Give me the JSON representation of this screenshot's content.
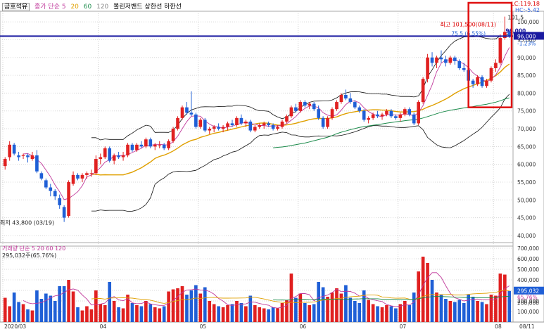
{
  "header": {
    "stock_name": "금호석유",
    "legend_items": [
      {
        "label": "종가 단순 5",
        "color": "#c0399b"
      },
      {
        "label": "20",
        "color": "#e0a000"
      },
      {
        "label": "60",
        "color": "#1a8a4a"
      },
      {
        "label": "120",
        "color": "#888888"
      },
      {
        "label": "볼린저밴드 상한선 하한선",
        "color": "#000000"
      }
    ],
    "lc": "LC:119.18",
    "hc": "HC:-5.42"
  },
  "price_panel": {
    "y_ticks": [
      "100,000",
      "95,000",
      "90,000",
      "85,000",
      "80,000",
      "75,000",
      "70,000",
      "65,000",
      "60,000",
      "55,000",
      "50,000",
      "45,000",
      "40,000"
    ],
    "y_tick_values": [
      100000,
      95000,
      90000,
      85000,
      80000,
      75000,
      70000,
      65000,
      60000,
      55000,
      50000,
      45000,
      40000
    ],
    "current_price_label": "96,000",
    "current_price": 96000,
    "change_label": "-1.23%",
    "max_annotation": "최고 101,500(08/11)",
    "max_top_label": "101,5",
    "min_annotation": "최저 43,800 (03/19)",
    "prev_close_annotation": "75,5 (6.55%)",
    "box_small_label": "96,000"
  },
  "volume_panel": {
    "legend_label": "거래량 단순 5 20 60 120",
    "volume_value": "295,032주(65.76%)",
    "y_ticks": [
      "700,000",
      "600,000",
      "500,000",
      "400,000",
      "300,000",
      "200,000",
      "100,000"
    ],
    "y_tick_values": [
      700000,
      600000,
      500000,
      400000,
      300000,
      200000,
      100000
    ],
    "current_volume_label": "295,032",
    "pct_label": "65.76%",
    "ref_label": "200,000"
  },
  "x_axis": {
    "labels": [
      "2020/03",
      "04",
      "05",
      "06",
      "07",
      "08",
      "08/11"
    ]
  },
  "chart_data": {
    "type": "candlestick",
    "title": "금호석유",
    "y_range": [
      38000,
      103000
    ],
    "volume_range": [
      0,
      720000
    ],
    "months": [
      "2020/03",
      "04",
      "05",
      "06",
      "07",
      "08"
    ],
    "candles": [
      {
        "o": 59500,
        "h": 62000,
        "l": 58500,
        "c": 61500,
        "v": 230000
      },
      {
        "o": 62000,
        "h": 66500,
        "l": 61000,
        "c": 65500,
        "v": 150000
      },
      {
        "o": 65500,
        "h": 66000,
        "l": 62500,
        "c": 63000,
        "v": 280000
      },
      {
        "o": 62500,
        "h": 63500,
        "l": 61000,
        "c": 62000,
        "v": 190000
      },
      {
        "o": 62500,
        "h": 63000,
        "l": 61500,
        "c": 62500,
        "v": 170000
      },
      {
        "o": 62500,
        "h": 63000,
        "l": 60500,
        "c": 62000,
        "v": 120000
      },
      {
        "o": 61500,
        "h": 63500,
        "l": 61000,
        "c": 62500,
        "v": 110000
      },
      {
        "o": 62500,
        "h": 64000,
        "l": 57500,
        "c": 58000,
        "v": 300000
      },
      {
        "o": 57500,
        "h": 58000,
        "l": 55500,
        "c": 56000,
        "v": 220000
      },
      {
        "o": 55500,
        "h": 56000,
        "l": 53000,
        "c": 53500,
        "v": 270000
      },
      {
        "o": 53500,
        "h": 54500,
        "l": 51000,
        "c": 52500,
        "v": 250000
      },
      {
        "o": 52500,
        "h": 53000,
        "l": 50000,
        "c": 51000,
        "v": 200000
      },
      {
        "o": 50500,
        "h": 51500,
        "l": 47500,
        "c": 48500,
        "v": 340000
      },
      {
        "o": 48000,
        "h": 48500,
        "l": 43800,
        "c": 45000,
        "v": 340000
      },
      {
        "o": 45500,
        "h": 55500,
        "l": 45000,
        "c": 55000,
        "v": 400000
      },
      {
        "o": 54500,
        "h": 58000,
        "l": 54000,
        "c": 57000,
        "v": 290000
      },
      {
        "o": 57000,
        "h": 57500,
        "l": 55500,
        "c": 56000,
        "v": 140000
      },
      {
        "o": 56000,
        "h": 57500,
        "l": 55000,
        "c": 57000,
        "v": 110000
      },
      {
        "o": 57000,
        "h": 58000,
        "l": 56000,
        "c": 57500,
        "v": 150000
      },
      {
        "o": 57500,
        "h": 58500,
        "l": 56500,
        "c": 57500,
        "v": 120000
      },
      {
        "o": 57500,
        "h": 62500,
        "l": 57000,
        "c": 61500,
        "v": 300000
      },
      {
        "o": 61500,
        "h": 63000,
        "l": 60000,
        "c": 62000,
        "v": 170000
      },
      {
        "o": 62000,
        "h": 65000,
        "l": 61500,
        "c": 64500,
        "v": 160000
      },
      {
        "o": 64500,
        "h": 65000,
        "l": 60500,
        "c": 61000,
        "v": 380000
      },
      {
        "o": 61000,
        "h": 63000,
        "l": 60000,
        "c": 62500,
        "v": 200000
      },
      {
        "o": 62500,
        "h": 63500,
        "l": 61500,
        "c": 62000,
        "v": 140000
      },
      {
        "o": 62000,
        "h": 63500,
        "l": 61000,
        "c": 62500,
        "v": 130000
      },
      {
        "o": 62500,
        "h": 66000,
        "l": 62000,
        "c": 65500,
        "v": 260000
      },
      {
        "o": 65500,
        "h": 66000,
        "l": 63500,
        "c": 64000,
        "v": 180000
      },
      {
        "o": 64000,
        "h": 66000,
        "l": 63500,
        "c": 65500,
        "v": 160000
      },
      {
        "o": 65500,
        "h": 66500,
        "l": 64500,
        "c": 65000,
        "v": 150000
      },
      {
        "o": 65000,
        "h": 67500,
        "l": 64500,
        "c": 67000,
        "v": 200000
      },
      {
        "o": 67000,
        "h": 67500,
        "l": 64500,
        "c": 65000,
        "v": 170000
      },
      {
        "o": 65000,
        "h": 66000,
        "l": 64000,
        "c": 65500,
        "v": 140000
      },
      {
        "o": 65500,
        "h": 66500,
        "l": 64500,
        "c": 65500,
        "v": 130000
      },
      {
        "o": 65500,
        "h": 66000,
        "l": 64000,
        "c": 64500,
        "v": 150000
      },
      {
        "o": 64500,
        "h": 67000,
        "l": 64000,
        "c": 66500,
        "v": 290000
      },
      {
        "o": 66500,
        "h": 70500,
        "l": 66000,
        "c": 70000,
        "v": 310000
      },
      {
        "o": 70000,
        "h": 73500,
        "l": 69500,
        "c": 73000,
        "v": 320000
      },
      {
        "o": 73000,
        "h": 76500,
        "l": 72500,
        "c": 76000,
        "v": 340000
      },
      {
        "o": 76000,
        "h": 77500,
        "l": 74000,
        "c": 74500,
        "v": 260000
      },
      {
        "o": 74500,
        "h": 80500,
        "l": 73500,
        "c": 74000,
        "v": 300000
      },
      {
        "o": 74000,
        "h": 74500,
        "l": 70000,
        "c": 70500,
        "v": 350000
      },
      {
        "o": 70500,
        "h": 73000,
        "l": 70000,
        "c": 72500,
        "v": 270000
      },
      {
        "o": 72500,
        "h": 73000,
        "l": 69000,
        "c": 69500,
        "v": 330000
      },
      {
        "o": 69500,
        "h": 70500,
        "l": 68500,
        "c": 70000,
        "v": 200000
      },
      {
        "o": 70000,
        "h": 71000,
        "l": 69000,
        "c": 70500,
        "v": 170000
      },
      {
        "o": 70500,
        "h": 71500,
        "l": 69500,
        "c": 70000,
        "v": 150000
      },
      {
        "o": 70000,
        "h": 71000,
        "l": 69000,
        "c": 70500,
        "v": 140000
      },
      {
        "o": 70500,
        "h": 72000,
        "l": 69500,
        "c": 71500,
        "v": 160000
      },
      {
        "o": 71500,
        "h": 72500,
        "l": 70500,
        "c": 71000,
        "v": 170000
      },
      {
        "o": 71000,
        "h": 73500,
        "l": 70500,
        "c": 73000,
        "v": 200000
      },
      {
        "o": 73000,
        "h": 74000,
        "l": 71000,
        "c": 71500,
        "v": 180000
      },
      {
        "o": 71500,
        "h": 72500,
        "l": 70500,
        "c": 72000,
        "v": 150000
      },
      {
        "o": 72000,
        "h": 72500,
        "l": 69000,
        "c": 69500,
        "v": 250000
      },
      {
        "o": 69500,
        "h": 71000,
        "l": 69000,
        "c": 70500,
        "v": 160000
      },
      {
        "o": 70500,
        "h": 71500,
        "l": 70000,
        "c": 71000,
        "v": 140000
      },
      {
        "o": 71000,
        "h": 72000,
        "l": 70000,
        "c": 71500,
        "v": 130000
      },
      {
        "o": 71500,
        "h": 72000,
        "l": 70500,
        "c": 71000,
        "v": 120000
      },
      {
        "o": 71000,
        "h": 71500,
        "l": 69500,
        "c": 70000,
        "v": 140000
      },
      {
        "o": 70000,
        "h": 71000,
        "l": 69500,
        "c": 70500,
        "v": 130000
      },
      {
        "o": 70500,
        "h": 72500,
        "l": 70000,
        "c": 72000,
        "v": 180000
      },
      {
        "o": 72000,
        "h": 74000,
        "l": 71500,
        "c": 73500,
        "v": 210000
      },
      {
        "o": 73500,
        "h": 76500,
        "l": 73000,
        "c": 76000,
        "v": 460000
      },
      {
        "o": 76000,
        "h": 77000,
        "l": 74500,
        "c": 75000,
        "v": 230000
      },
      {
        "o": 75000,
        "h": 78000,
        "l": 74500,
        "c": 77500,
        "v": 270000
      },
      {
        "o": 77500,
        "h": 78000,
        "l": 76000,
        "c": 76500,
        "v": 180000
      },
      {
        "o": 76500,
        "h": 77500,
        "l": 75500,
        "c": 77000,
        "v": 160000
      },
      {
        "o": 77000,
        "h": 77500,
        "l": 75000,
        "c": 75500,
        "v": 170000
      },
      {
        "o": 75500,
        "h": 76500,
        "l": 72500,
        "c": 73000,
        "v": 380000
      },
      {
        "o": 73000,
        "h": 73500,
        "l": 70000,
        "c": 70500,
        "v": 330000
      },
      {
        "o": 70500,
        "h": 73500,
        "l": 70000,
        "c": 73000,
        "v": 240000
      },
      {
        "o": 73000,
        "h": 76000,
        "l": 72500,
        "c": 75500,
        "v": 280000
      },
      {
        "o": 75500,
        "h": 78000,
        "l": 75000,
        "c": 77500,
        "v": 320000
      },
      {
        "o": 77500,
        "h": 80000,
        "l": 77000,
        "c": 79500,
        "v": 270000
      },
      {
        "o": 79500,
        "h": 81000,
        "l": 78000,
        "c": 78500,
        "v": 350000
      },
      {
        "o": 78500,
        "h": 80000,
        "l": 77000,
        "c": 77500,
        "v": 230000
      },
      {
        "o": 77500,
        "h": 78000,
        "l": 75500,
        "c": 76000,
        "v": 200000
      },
      {
        "o": 76000,
        "h": 76500,
        "l": 74500,
        "c": 75000,
        "v": 180000
      },
      {
        "o": 75000,
        "h": 75500,
        "l": 72000,
        "c": 72500,
        "v": 300000
      },
      {
        "o": 72500,
        "h": 73500,
        "l": 71500,
        "c": 73000,
        "v": 210000
      },
      {
        "o": 73000,
        "h": 74500,
        "l": 72500,
        "c": 74000,
        "v": 170000
      },
      {
        "o": 74000,
        "h": 75000,
        "l": 73000,
        "c": 73500,
        "v": 150000
      },
      {
        "o": 73500,
        "h": 74500,
        "l": 72500,
        "c": 74000,
        "v": 140000
      },
      {
        "o": 74000,
        "h": 75500,
        "l": 73500,
        "c": 75000,
        "v": 160000
      },
      {
        "o": 75000,
        "h": 75500,
        "l": 73000,
        "c": 73500,
        "v": 150000
      },
      {
        "o": 73500,
        "h": 74000,
        "l": 72500,
        "c": 73000,
        "v": 130000
      },
      {
        "o": 73000,
        "h": 74500,
        "l": 72000,
        "c": 74000,
        "v": 170000
      },
      {
        "o": 74000,
        "h": 76000,
        "l": 73500,
        "c": 75500,
        "v": 200000
      },
      {
        "o": 75500,
        "h": 76000,
        "l": 73500,
        "c": 74000,
        "v": 160000
      },
      {
        "o": 74000,
        "h": 74500,
        "l": 71000,
        "c": 71500,
        "v": 280000
      },
      {
        "o": 71500,
        "h": 78000,
        "l": 71000,
        "c": 77500,
        "v": 480000
      },
      {
        "o": 77500,
        "h": 84500,
        "l": 77000,
        "c": 84000,
        "v": 620000
      },
      {
        "o": 84000,
        "h": 91000,
        "l": 83000,
        "c": 90000,
        "v": 560000
      },
      {
        "o": 90000,
        "h": 91500,
        "l": 87500,
        "c": 88500,
        "v": 400000
      },
      {
        "o": 88500,
        "h": 90500,
        "l": 87000,
        "c": 90000,
        "v": 280000
      },
      {
        "o": 90000,
        "h": 92000,
        "l": 88500,
        "c": 89500,
        "v": 260000
      },
      {
        "o": 89500,
        "h": 90500,
        "l": 87500,
        "c": 88500,
        "v": 220000
      },
      {
        "o": 88500,
        "h": 90500,
        "l": 88000,
        "c": 90000,
        "v": 200000
      },
      {
        "o": 90000,
        "h": 90500,
        "l": 88000,
        "c": 89000,
        "v": 190000
      },
      {
        "o": 89000,
        "h": 89500,
        "l": 86500,
        "c": 87000,
        "v": 210000
      },
      {
        "o": 87000,
        "h": 88500,
        "l": 86000,
        "c": 86500,
        "v": 180000
      },
      {
        "o": 86500,
        "h": 87000,
        "l": 83000,
        "c": 83500,
        "v": 260000
      },
      {
        "o": 83500,
        "h": 84000,
        "l": 81500,
        "c": 82500,
        "v": 240000
      },
      {
        "o": 82500,
        "h": 85000,
        "l": 82000,
        "c": 84500,
        "v": 200000
      },
      {
        "o": 84500,
        "h": 85000,
        "l": 81500,
        "c": 82000,
        "v": 190000
      },
      {
        "o": 82000,
        "h": 84000,
        "l": 81500,
        "c": 83500,
        "v": 170000
      },
      {
        "o": 83500,
        "h": 87500,
        "l": 83000,
        "c": 87000,
        "v": 260000
      },
      {
        "o": 87000,
        "h": 89500,
        "l": 86000,
        "c": 88500,
        "v": 250000
      },
      {
        "o": 88500,
        "h": 96500,
        "l": 88000,
        "c": 95500,
        "v": 460000
      },
      {
        "o": 95500,
        "h": 101500,
        "l": 95000,
        "c": 97200,
        "v": 450000
      },
      {
        "o": 97200,
        "h": 97500,
        "l": 95500,
        "c": 96000,
        "v": 295032
      }
    ]
  }
}
